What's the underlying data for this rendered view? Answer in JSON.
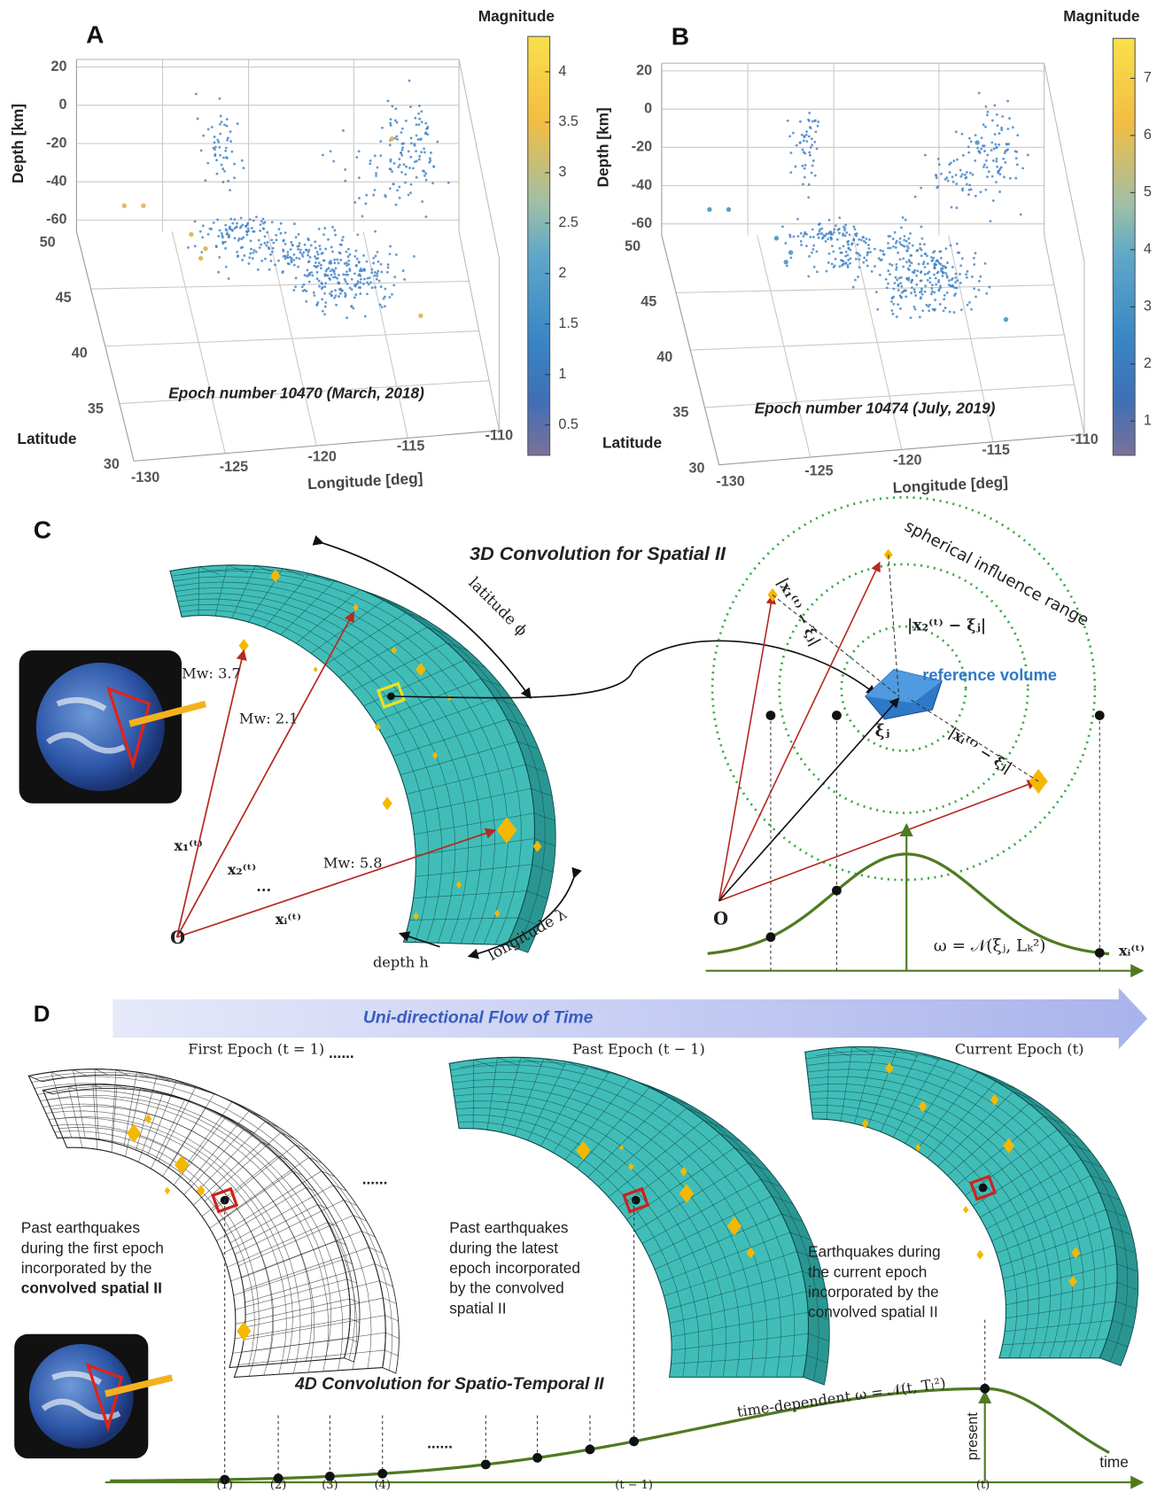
{
  "panel_a": {
    "label": "A",
    "colorbar_title": "Magnitude",
    "colorbar_ticks": [
      "4",
      "3.5",
      "3",
      "2.5",
      "2",
      "1.5",
      "1",
      "0.5"
    ],
    "z_label": "Depth [km]",
    "z_ticks": [
      "20",
      "0",
      "-20",
      "-40",
      "-60"
    ],
    "lat_label": "Latitude",
    "lat_ticks": [
      "50",
      "45",
      "40",
      "35",
      "30"
    ],
    "lon_label": "Longitude [deg]",
    "lon_ticks": [
      "-130",
      "-125",
      "-120",
      "-115",
      "-110"
    ],
    "annotation": "Epoch number 10470 (March, 2018)"
  },
  "panel_b": {
    "label": "B",
    "colorbar_title": "Magnitude",
    "colorbar_ticks": [
      "7",
      "6",
      "5",
      "4",
      "3",
      "2",
      "1"
    ],
    "z_label": "Depth [km]",
    "z_ticks": [
      "20",
      "0",
      "-20",
      "-40",
      "-60"
    ],
    "lat_label": "Latitude",
    "lat_ticks": [
      "50",
      "45",
      "40",
      "35",
      "30"
    ],
    "lon_label": "Longitude [deg]",
    "lon_ticks": [
      "-130",
      "-125",
      "-120",
      "-115",
      "-110"
    ],
    "annotation": "Epoch number 10474 (July, 2019)"
  },
  "panel_c": {
    "label": "C",
    "title": "3D Convolution for Spatial II",
    "magnitudes": [
      "Mw: 3.7",
      "Mw: 2.1",
      "Mw: 5.8"
    ],
    "vectors": [
      "x₁⁽ᵗ⁾",
      "x₂⁽ᵗ⁾",
      "...",
      "xᵢ⁽ᵗ⁾"
    ],
    "origin": "O",
    "depth": "depth h",
    "longitude": "longitude λ",
    "latitude": "latitude ϕ",
    "influence_range": "spherical influence range",
    "reference_volume": "reference volume",
    "distances": [
      "|x₁⁽ᵗ⁾ − ξⱼ|",
      "|x₂⁽ᵗ⁾ − ξⱼ|",
      "|xᵢ⁽ᵗ⁾ − ξⱼ|"
    ],
    "xi": "ξⱼ",
    "kernel": "ω = 𝒩(ξⱼ, Lₖ²)",
    "kernel_axis": "xᵢ⁽ᵗ⁾",
    "origin_right": "O"
  },
  "panel_d": {
    "label": "D",
    "banner": "Uni-directional Flow of Time",
    "epochs": [
      "First Epoch (t = 1)",
      "Past Epoch (t − 1)",
      "Current Epoch (t)"
    ],
    "ellipses": [
      "......",
      "......",
      "......"
    ],
    "captions": [
      [
        "Past earthquakes",
        "during the first epoch",
        "incorporated by the",
        "convolved spatial II"
      ],
      [
        "Past earthquakes",
        "during the latest",
        "epoch incorporated",
        "by the convolved",
        "spatial II"
      ],
      [
        "Earthquakes during",
        "the current epoch",
        "incorporated by the",
        "convolved spatial II"
      ]
    ],
    "title": "4D Convolution for Spatio-Temporal II",
    "kernel": "time-dependent ω = 𝒩(t, Tₗ²)",
    "present": "present",
    "time_axis": "time",
    "time_ticks": [
      "(1)",
      "(2)",
      "(3)",
      "(4)",
      "(t − 1)",
      "(t)"
    ]
  }
}
